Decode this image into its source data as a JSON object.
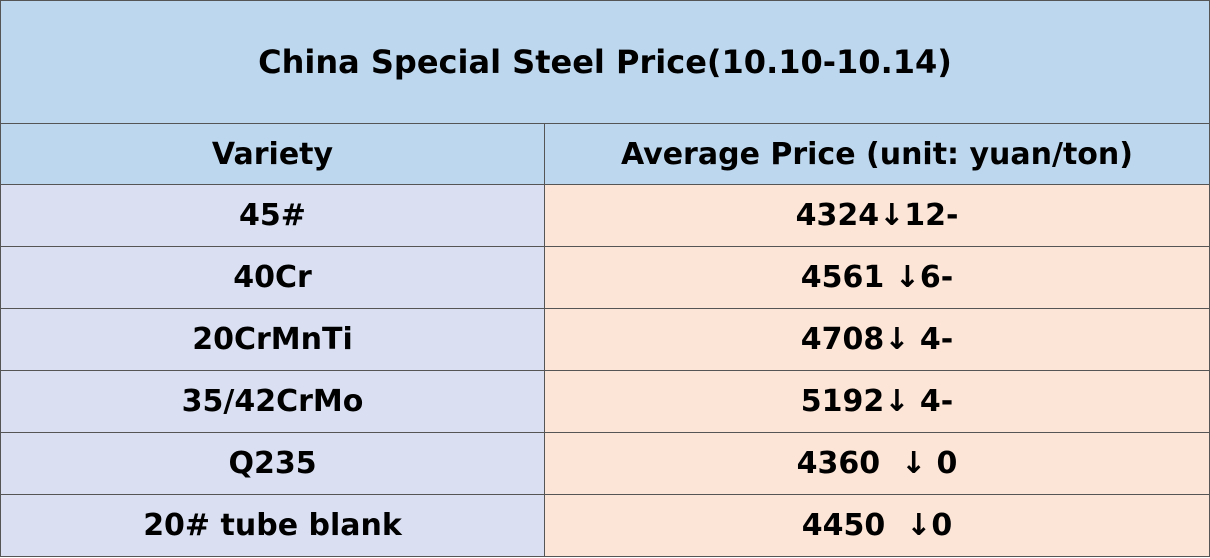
{
  "table": {
    "title": "China Special Steel Price(10.10-10.14)",
    "header": [
      "Variety",
      "Average Price (unit: yuan/ton)"
    ],
    "rows": [
      [
        "45#",
        "4324↓12-"
      ],
      [
        "40Cr",
        "4561 ↓6-"
      ],
      [
        "20CrMnTi",
        "4708↓ 4-"
      ],
      [
        "35/42CrMo",
        "5192↓ 4-"
      ],
      [
        "Q235",
        "4360  ↓ 0"
      ],
      [
        "20# tube blank",
        "4450  ↓0"
      ]
    ]
  }
}
